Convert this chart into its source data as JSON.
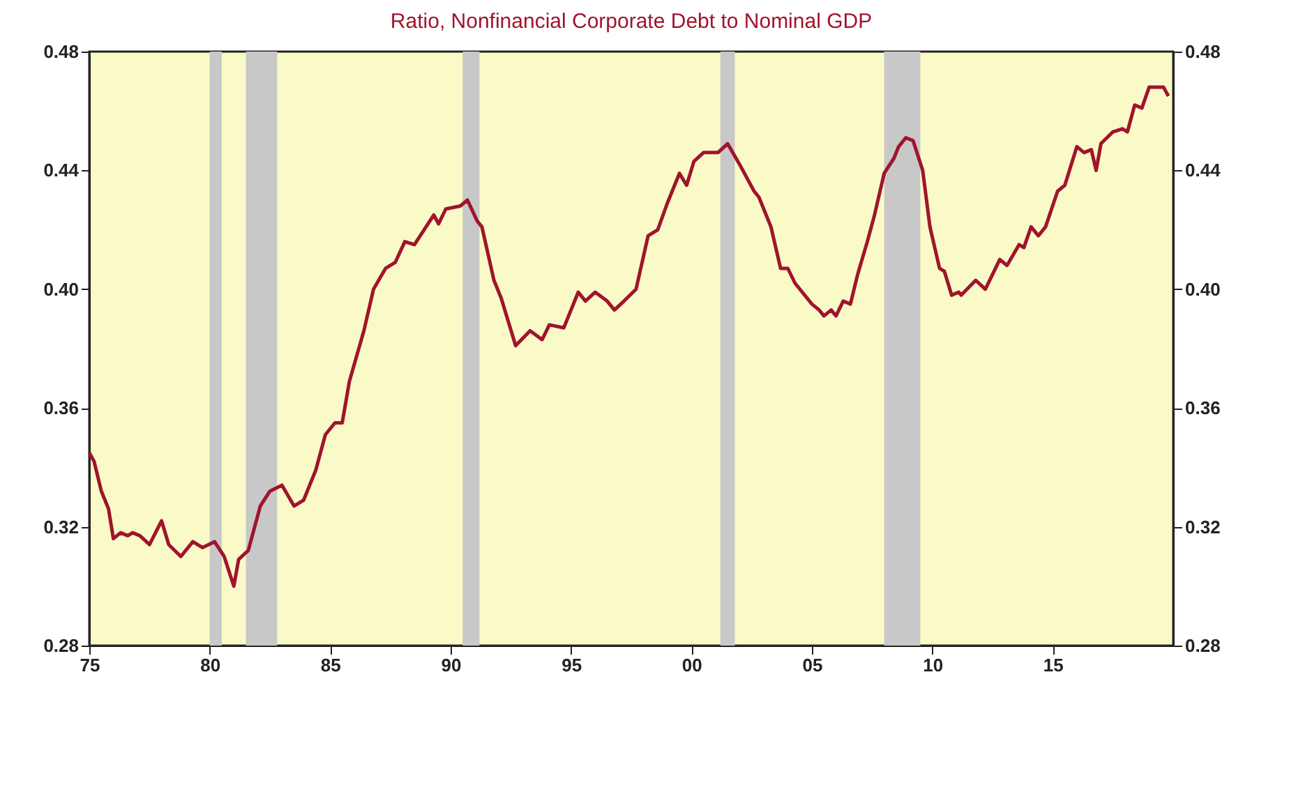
{
  "chart_data": {
    "type": "line",
    "title": "Ratio, Nonfinancial Corporate Debt to Nominal GDP",
    "x": [
      1975.0,
      1975.2,
      1975.5,
      1975.8,
      1976.0,
      1976.3,
      1976.6,
      1976.8,
      1977.1,
      1977.5,
      1978.0,
      1978.3,
      1978.8,
      1979.3,
      1979.7,
      1980.2,
      1980.6,
      1981.0,
      1981.2,
      1981.6,
      1982.1,
      1982.5,
      1983.0,
      1983.5,
      1983.9,
      1984.4,
      1984.8,
      1985.2,
      1985.5,
      1985.8,
      1986.4,
      1986.8,
      1987.3,
      1987.7,
      1988.1,
      1988.5,
      1988.9,
      1989.3,
      1989.5,
      1989.8,
      1990.4,
      1990.7,
      1991.1,
      1991.3,
      1991.8,
      1992.1,
      1992.7,
      1993.3,
      1993.8,
      1994.1,
      1994.7,
      1995.3,
      1995.6,
      1996.0,
      1996.5,
      1996.8,
      1997.2,
      1997.7,
      1998.2,
      1998.6,
      1999.0,
      1999.5,
      1999.8,
      2000.1,
      2000.5,
      2001.1,
      2001.5,
      2002.0,
      2002.6,
      2002.8,
      2003.3,
      2003.7,
      2004.0,
      2004.3,
      2005.0,
      2005.3,
      2005.5,
      2005.8,
      2006.0,
      2006.3,
      2006.6,
      2006.9,
      2007.3,
      2007.6,
      2008.0,
      2008.4,
      2008.6,
      2008.9,
      2009.2,
      2009.6,
      2009.9,
      2010.3,
      2010.5,
      2010.8,
      2011.1,
      2011.2,
      2011.8,
      2012.2,
      2012.8,
      2013.1,
      2013.6,
      2013.8,
      2014.1,
      2014.4,
      2014.7,
      2015.2,
      2015.5,
      2016.0,
      2016.3,
      2016.6,
      2016.8,
      2017.0,
      2017.5,
      2017.9,
      2018.1,
      2018.4,
      2018.7,
      2019.0,
      2019.6,
      2019.8
    ],
    "series": [
      {
        "color": "#a0142c",
        "values": [
          0.345,
          0.342,
          0.332,
          0.326,
          0.316,
          0.318,
          0.317,
          0.318,
          0.317,
          0.314,
          0.322,
          0.314,
          0.31,
          0.315,
          0.313,
          0.315,
          0.31,
          0.3,
          0.309,
          0.312,
          0.327,
          0.332,
          0.334,
          0.327,
          0.329,
          0.339,
          0.351,
          0.355,
          0.355,
          0.369,
          0.386,
          0.4,
          0.407,
          0.409,
          0.416,
          0.415,
          0.42,
          0.425,
          0.422,
          0.427,
          0.428,
          0.43,
          0.423,
          0.421,
          0.403,
          0.397,
          0.381,
          0.386,
          0.383,
          0.388,
          0.387,
          0.399,
          0.396,
          0.399,
          0.396,
          0.393,
          0.396,
          0.4,
          0.418,
          0.42,
          0.429,
          0.439,
          0.435,
          0.443,
          0.446,
          0.446,
          0.449,
          0.442,
          0.433,
          0.431,
          0.421,
          0.407,
          0.407,
          0.402,
          0.395,
          0.393,
          0.391,
          0.393,
          0.391,
          0.396,
          0.395,
          0.405,
          0.416,
          0.425,
          0.439,
          0.444,
          0.448,
          0.451,
          0.45,
          0.44,
          0.421,
          0.407,
          0.406,
          0.398,
          0.399,
          0.398,
          0.403,
          0.4,
          0.41,
          0.408,
          0.415,
          0.414,
          0.421,
          0.418,
          0.421,
          0.433,
          0.435,
          0.448,
          0.446,
          0.447,
          0.44,
          0.449,
          0.453,
          0.454,
          0.453,
          0.462,
          0.461,
          0.468,
          0.468,
          0.465
        ]
      }
    ],
    "xlim": [
      1975,
      2020
    ],
    "xticks": [
      {
        "value": 1975,
        "label": "75"
      },
      {
        "value": 1980,
        "label": "80"
      },
      {
        "value": 1985,
        "label": "85"
      },
      {
        "value": 1990,
        "label": "90"
      },
      {
        "value": 1995,
        "label": "95"
      },
      {
        "value": 2000,
        "label": "00"
      },
      {
        "value": 2005,
        "label": "05"
      },
      {
        "value": 2010,
        "label": "10"
      },
      {
        "value": 2015,
        "label": "15"
      }
    ],
    "ylim": [
      0.28,
      0.48
    ],
    "yticks": [
      {
        "value": 0.28,
        "label": "0.28"
      },
      {
        "value": 0.32,
        "label": "0.32"
      },
      {
        "value": 0.36,
        "label": "0.36"
      },
      {
        "value": 0.4,
        "label": "0.40"
      },
      {
        "value": 0.44,
        "label": "0.44"
      },
      {
        "value": 0.48,
        "label": "0.48"
      }
    ],
    "y2lim": [
      0.28,
      0.48
    ],
    "y2ticks": [
      {
        "value": 0.28,
        "label": "0.28"
      },
      {
        "value": 0.32,
        "label": "0.32"
      },
      {
        "value": 0.36,
        "label": "0.36"
      },
      {
        "value": 0.4,
        "label": "0.40"
      },
      {
        "value": 0.44,
        "label": "0.44"
      },
      {
        "value": 0.48,
        "label": "0.48"
      }
    ],
    "bands": [
      {
        "axis": "x",
        "from": 1980.0,
        "to": 1980.5,
        "color": "#c8c8c8"
      },
      {
        "axis": "x",
        "from": 1981.5,
        "to": 1982.8,
        "color": "#c8c8c8"
      },
      {
        "axis": "x",
        "from": 1990.5,
        "to": 1991.2,
        "color": "#c8c8c8"
      },
      {
        "axis": "x",
        "from": 2001.2,
        "to": 2001.8,
        "color": "#c8c8c8"
      },
      {
        "axis": "x",
        "from": 2008.0,
        "to": 2009.5,
        "color": "#c8c8c8"
      }
    ],
    "grid": false
  }
}
